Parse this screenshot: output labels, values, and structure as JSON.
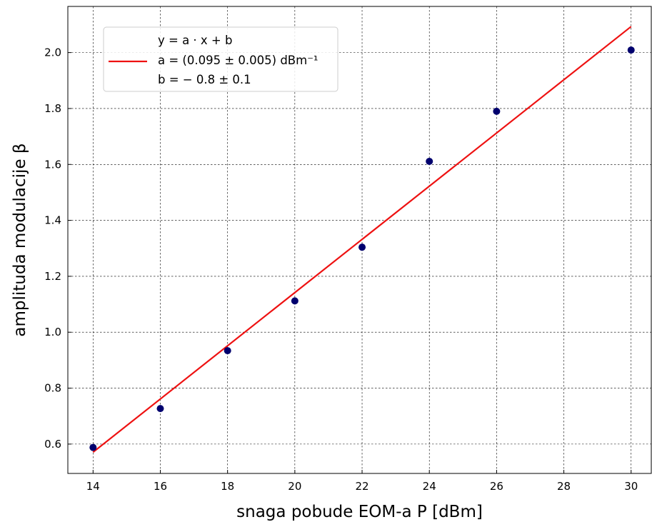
{
  "chart_data": {
    "type": "scatter",
    "xlabel": "snaga pobude EOM-a P [dBm]",
    "ylabel": "amplituda modulacije β",
    "xlim": [
      13.25,
      30.6
    ],
    "ylim": [
      0.495,
      2.165
    ],
    "x_ticks": [
      14,
      16,
      18,
      20,
      22,
      24,
      26,
      28,
      30
    ],
    "y_ticks": [
      0.6,
      0.8,
      1.0,
      1.2,
      1.4,
      1.6,
      1.8,
      2.0
    ],
    "grid": true,
    "legend_position": "upper-left",
    "series": [
      {
        "kind": "points",
        "color": "#00006e",
        "x": [
          14,
          16,
          18,
          20,
          22,
          24,
          26,
          30
        ],
        "y": [
          0.588,
          0.727,
          0.934,
          1.112,
          1.304,
          1.611,
          1.79,
          2.009
        ]
      },
      {
        "kind": "fit-line",
        "color": "#ee1111",
        "x": [
          14,
          30
        ],
        "y": [
          0.571,
          2.093
        ]
      }
    ],
    "legend": {
      "line1": "y = a · x + b",
      "line2": "a = (0.095 ± 0.005) dBm⁻¹",
      "line3": "b = − 0.8 ± 0.1"
    }
  }
}
